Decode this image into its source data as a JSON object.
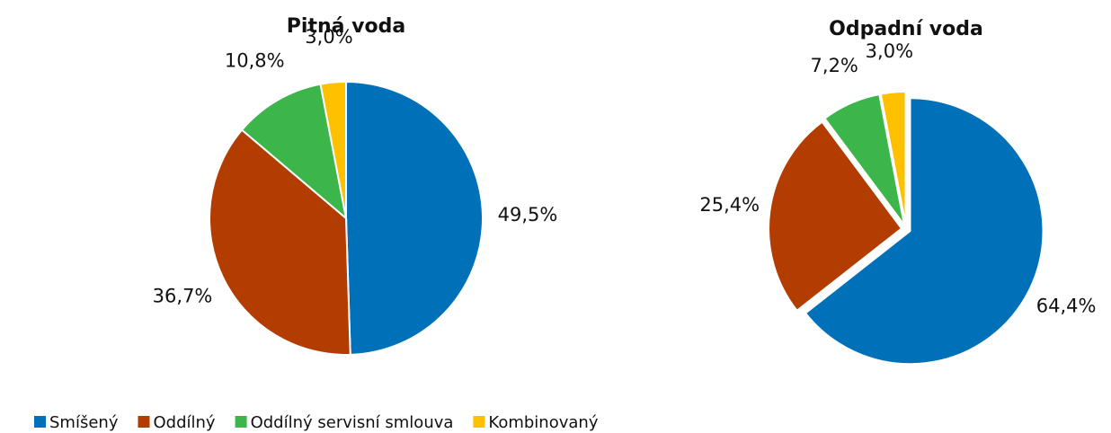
{
  "chart_data": [
    {
      "type": "pie",
      "title": "Pitná voda",
      "categories": [
        "Smíšený",
        "Oddílný",
        "Oddílný servisní smlouva",
        "Kombinovaný"
      ],
      "values": [
        49.5,
        36.7,
        10.8,
        3.0
      ],
      "value_labels": [
        "49,5%",
        "36,7%",
        "10,8%",
        "3,0%"
      ],
      "colors": [
        "#0070b8",
        "#b33c00",
        "#3cb54a",
        "#ffc000"
      ]
    },
    {
      "type": "pie",
      "title": "Odpadní voda",
      "categories": [
        "Smíšený",
        "Oddílný",
        "Oddílný servisní smlouva",
        "Kombinovaný"
      ],
      "values": [
        64.4,
        25.4,
        7.2,
        3.0
      ],
      "value_labels": [
        "64,4%",
        "25,4%",
        "7,2%",
        "3,0%"
      ],
      "colors": [
        "#0070b8",
        "#b33c00",
        "#3cb54a",
        "#ffc000"
      ]
    }
  ]
}
